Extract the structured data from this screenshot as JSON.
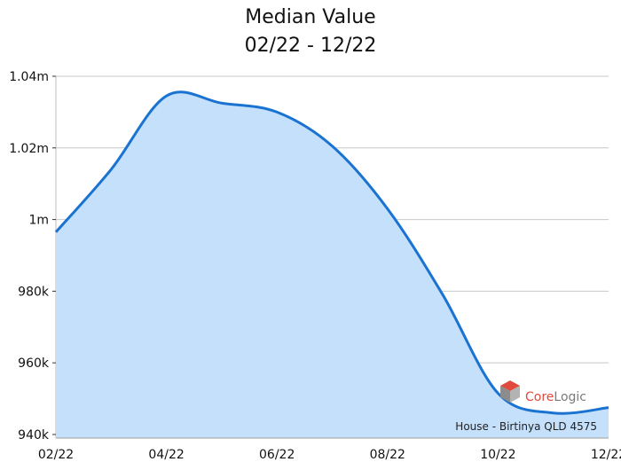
{
  "chart_data": {
    "type": "area",
    "title": "Median Value",
    "subtitle": "02/22 - 12/22",
    "x": [
      "02/22",
      "03/22",
      "04/22",
      "05/22",
      "06/22",
      "07/22",
      "08/22",
      "09/22",
      "10/22",
      "11/22",
      "12/22"
    ],
    "x_tick_labels": [
      "02/22",
      "04/22",
      "06/22",
      "08/22",
      "10/22",
      "12/22"
    ],
    "series": [
      {
        "values": [
          996500,
          1014000,
          1034500,
          1032500,
          1030000,
          1020500,
          1003000,
          979000,
          951500,
          946000,
          947500
        ]
      }
    ],
    "ylim": [
      939000,
      1040000
    ],
    "y_ticks": [
      940000,
      960000,
      980000,
      1000000,
      1020000,
      1040000
    ],
    "y_tick_labels": [
      "940k",
      "960k",
      "980k",
      "1m",
      "1.02m",
      "1.04m"
    ],
    "grid": true,
    "caption": "House - Birtinya QLD 4575",
    "colors": {
      "line": "#1a73d1",
      "fill": "#c5e0fb",
      "grid": "#c8c8c8"
    }
  },
  "logo": {
    "text_core": "Core",
    "text_logic": "Logic",
    "icon": "corelogic-cube-icon"
  }
}
